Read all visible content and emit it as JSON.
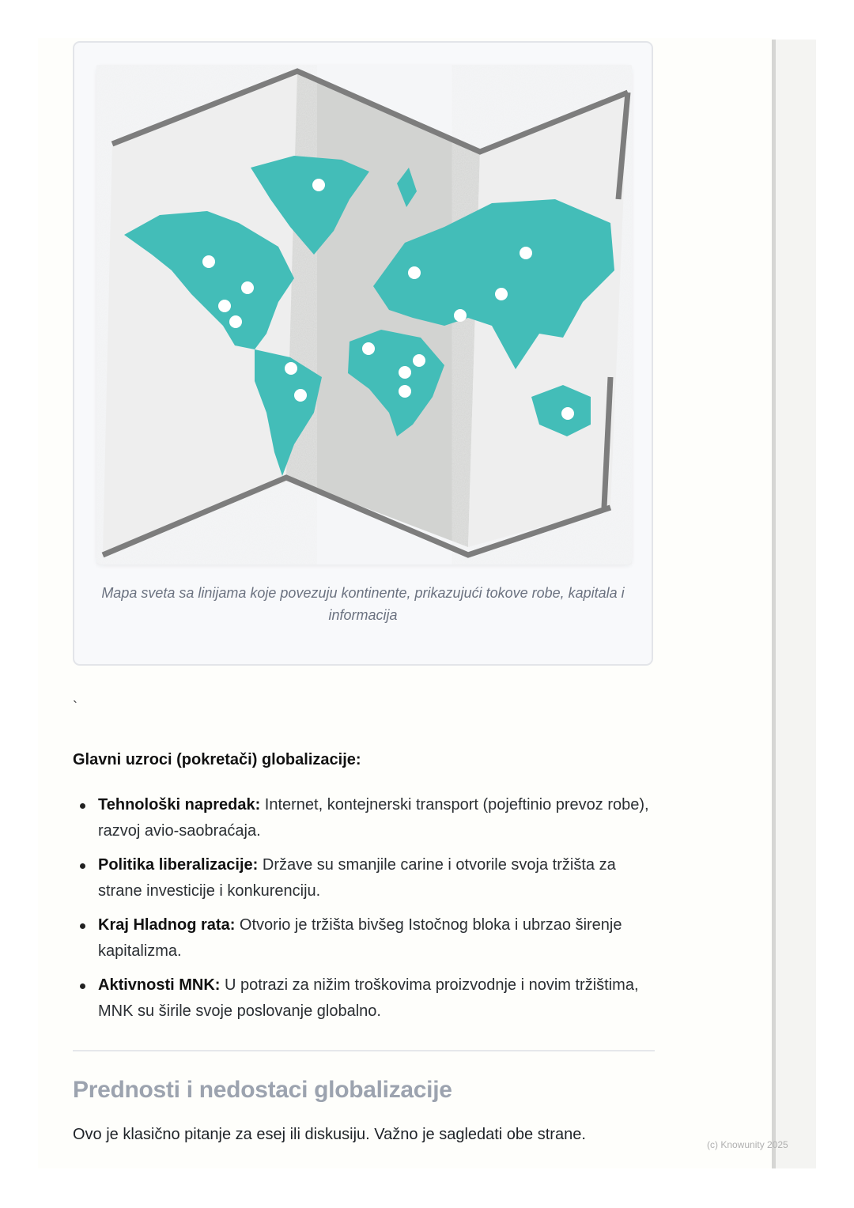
{
  "figure": {
    "image_alt": "world-map-folded",
    "caption": "Mapa sveta sa linijama koje povezuju kontinente, prikazujući tokove robe, kapitala i informacija",
    "colors": {
      "land": "#43bdb8",
      "paper": "#ececec",
      "fold": "#d2d3d1",
      "border": "#7d7d7d"
    }
  },
  "stray_char": "`",
  "causes": {
    "heading": "Glavni uzroci (pokretači) globalizacije:",
    "items": [
      {
        "term": "Tehnološki napredak:",
        "text": " Internet, kontejnerski transport (pojeftinio prevoz robe), razvoj avio-saobraćaja."
      },
      {
        "term": "Politika liberalizacije:",
        "text": " Države su smanjile carine i otvorile svoja tržišta za strane investicije i konkurenciju."
      },
      {
        "term": "Kraj Hladnog rata:",
        "text": " Otvorio je tržišta bivšeg Istočnog bloka i ubrzao širenje kapitalizma."
      },
      {
        "term": "Aktivnosti MNK:",
        "text": " U potrazi za nižim troškovima proizvodnje i novim tržištima, MNK su širile svoje poslovanje globalno."
      }
    ]
  },
  "section": {
    "title": "Prednosti i nedostaci globalizacije",
    "intro": "Ovo je klasično pitanje za esej ili diskusiju. Važno je sagledati obe strane."
  },
  "watermark": "(c) Knowunity 2025"
}
